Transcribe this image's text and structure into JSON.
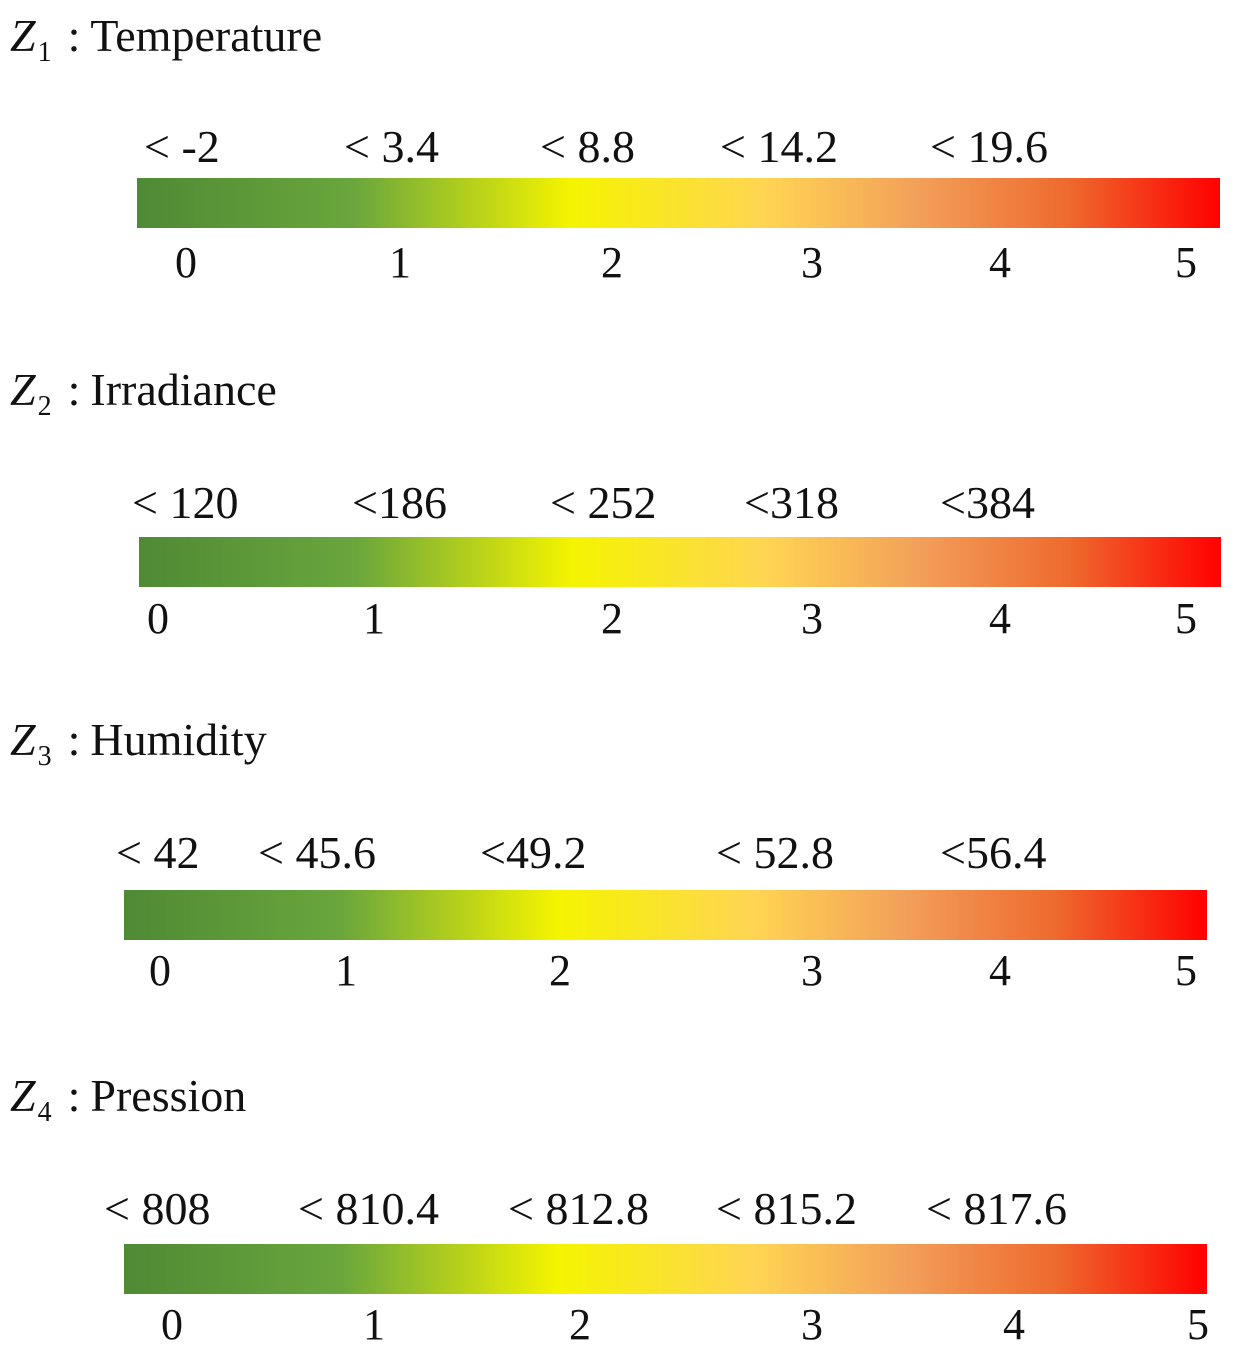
{
  "panels": [
    {
      "var": "Z",
      "sub": "1",
      "sep": ":",
      "name": "Temperature",
      "thresholds": [
        "< -2",
        "< 3.4",
        "< 8.8",
        "< 14.2",
        "< 19.6"
      ],
      "scale": [
        "0",
        "1",
        "2",
        "3",
        "4",
        "5"
      ]
    },
    {
      "var": "Z",
      "sub": "2",
      "sep": ":",
      "name": "Irradiance",
      "thresholds": [
        "< 120",
        "<186",
        "< 252",
        "<318",
        "<384"
      ],
      "scale": [
        "0",
        "1",
        "2",
        "3",
        "4",
        "5"
      ]
    },
    {
      "var": "Z",
      "sub": "3",
      "sep": ":",
      "name": "Humidity",
      "thresholds": [
        "< 42",
        "< 45.6",
        "<49.2",
        "< 52.8",
        "<56.4"
      ],
      "scale": [
        "0",
        "1",
        "2",
        "3",
        "4",
        "5"
      ]
    },
    {
      "var": "Z",
      "sub": "4",
      "sep": ":",
      "name": "Pression",
      "thresholds": [
        "< 808",
        "< 810.4",
        "< 812.8",
        "< 815.2",
        "< 817.6"
      ],
      "scale": [
        "0",
        "1",
        "2",
        "3",
        "4",
        "5"
      ]
    }
  ],
  "colors": {
    "low": "#4f8a35",
    "mid": "#f4f400",
    "high": "#ff0000"
  }
}
